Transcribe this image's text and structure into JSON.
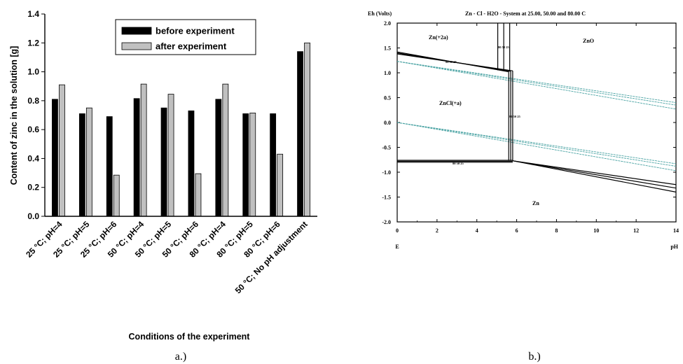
{
  "panel_a": {
    "caption": "a.)",
    "legend": {
      "before": "before experiment",
      "after": "after experiment"
    },
    "chart_data": {
      "type": "bar",
      "title": "",
      "ylabel": "Content of zinc in the solution [g]",
      "xlabel": "Conditions of the experiment",
      "ylim": [
        0,
        1.4
      ],
      "yticks": [
        "0.0",
        "0.2",
        "0.4",
        "0.6",
        "0.8",
        "1.0",
        "1.2",
        "1.4"
      ],
      "legend_position": "top-right",
      "categories": [
        "25 °C; pH=4",
        "25 °C; pH=5",
        "25 °C; pH=6",
        "50 °C; pH=4",
        "50 °C; pH=5",
        "50 °C; pH=6",
        "80 °C; pH=4",
        "80 °C; pH=5",
        "80 °C; pH=6",
        "50 °C; No pH adjustment"
      ],
      "series": [
        {
          "name": "before experiment",
          "color": "#000000",
          "values": [
            0.81,
            0.71,
            0.69,
            0.815,
            0.75,
            0.73,
            0.81,
            0.71,
            0.71,
            1.14
          ]
        },
        {
          "name": "after experiment",
          "color": "#c0c0c0",
          "values": [
            0.91,
            0.75,
            0.285,
            0.915,
            0.845,
            0.295,
            0.915,
            0.715,
            0.43,
            1.2
          ]
        }
      ]
    }
  },
  "panel_b": {
    "caption": "b.)",
    "chart_data": {
      "type": "line",
      "title": "Zn - Cl - H2O - System at 25.00, 50.00 and 80.00 C",
      "ylabel": "Eh (Volts)",
      "xlabel": "pH",
      "corner_label": "E",
      "xlim": [
        0,
        14
      ],
      "ylim": [
        -2.0,
        2.0
      ],
      "xticks": [
        "0",
        "2",
        "4",
        "6",
        "8",
        "10",
        "12",
        "14"
      ],
      "yticks": [
        "2.0",
        "1.5",
        "1.0",
        "0.5",
        "0.0",
        "-0.5",
        "-1.0",
        "-1.5",
        "-2.0"
      ],
      "regions": [
        "Zn(+2a)",
        "ZnO",
        "ZnCl(+a)",
        "Zn"
      ],
      "water_line_color": "#4aa3a3",
      "water_lines": [
        {
          "x": [
            0,
            14
          ],
          "y": [
            1.23,
            0.4
          ]
        },
        {
          "x": [
            0,
            14
          ],
          "y": [
            1.23,
            0.35
          ]
        },
        {
          "x": [
            0,
            14
          ],
          "y": [
            1.23,
            0.27
          ]
        },
        {
          "x": [
            0,
            14
          ],
          "y": [
            0.0,
            -0.83
          ]
        },
        {
          "x": [
            0,
            14
          ],
          "y": [
            0.0,
            -0.88
          ]
        },
        {
          "x": [
            0,
            14
          ],
          "y": [
            0.0,
            -0.97
          ]
        }
      ],
      "boundaries": [
        {
          "x": [
            0,
            5.6
          ],
          "y": [
            1.42,
            1.02
          ]
        },
        {
          "x": [
            0,
            5.7
          ],
          "y": [
            1.4,
            1.03
          ]
        },
        {
          "x": [
            0,
            5.8
          ],
          "y": [
            1.38,
            1.04
          ]
        },
        {
          "x": [
            5.6,
            5.6
          ],
          "y": [
            1.02,
            -0.77
          ]
        },
        {
          "x": [
            5.7,
            5.7
          ],
          "y": [
            1.03,
            -0.77
          ]
        },
        {
          "x": [
            5.8,
            5.8
          ],
          "y": [
            1.04,
            -0.77
          ]
        },
        {
          "x": [
            0,
            5.8
          ],
          "y": [
            -0.76,
            -0.76
          ]
        },
        {
          "x": [
            0,
            5.8
          ],
          "y": [
            -0.78,
            -0.78
          ]
        },
        {
          "x": [
            0,
            5.8
          ],
          "y": [
            -0.8,
            -0.8
          ]
        },
        {
          "x": [
            5.8,
            14
          ],
          "y": [
            -0.77,
            -1.25
          ]
        },
        {
          "x": [
            5.8,
            14
          ],
          "y": [
            -0.77,
            -1.32
          ]
        },
        {
          "x": [
            5.8,
            14
          ],
          "y": [
            -0.77,
            -1.4
          ]
        },
        {
          "x": [
            5.05,
            5.05
          ],
          "y": [
            2.0,
            1.05
          ]
        },
        {
          "x": [
            5.35,
            5.35
          ],
          "y": [
            2.0,
            1.04
          ]
        },
        {
          "x": [
            5.65,
            5.65
          ],
          "y": [
            2.0,
            1.03
          ]
        }
      ],
      "annotations": [
        "80 50 25",
        "80 50 25",
        "80 50 25",
        "80 50 25"
      ]
    }
  }
}
